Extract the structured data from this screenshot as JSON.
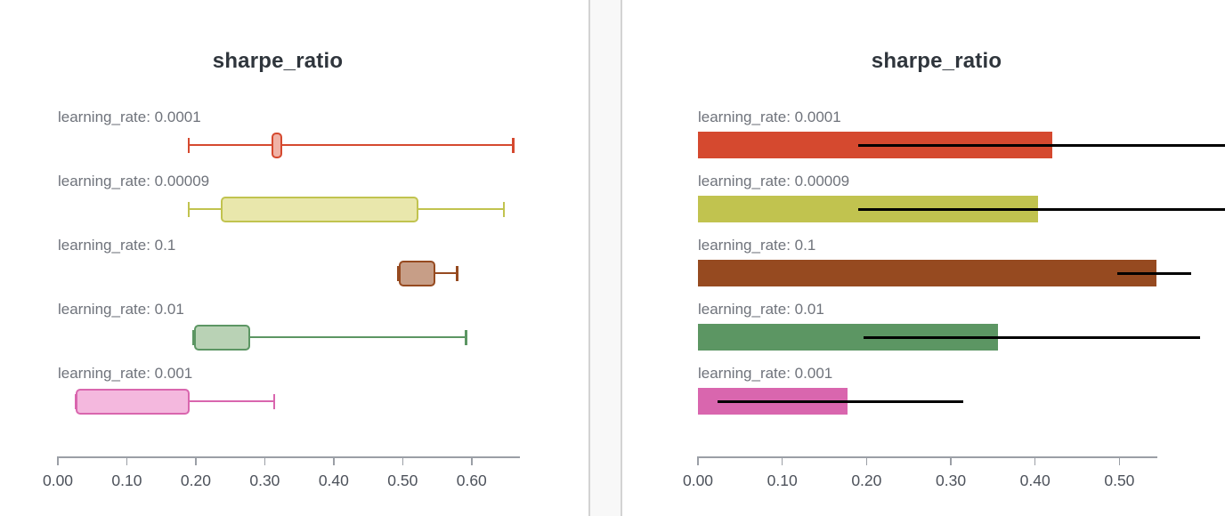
{
  "style": {
    "title_color": "#2f353c",
    "label_color": "#6f737b",
    "tick_label_color": "#4d525b",
    "axis_color": "#9b9fa6",
    "error_bar_color": "#000000",
    "divider_color": "#d3d3d3",
    "gutter_bg": "#f8f8f8",
    "panel_bg": "#ffffff"
  },
  "chart_data": [
    {
      "type": "box",
      "title": "sharpe_ratio",
      "orientation": "horizontal",
      "metric": "sharpe_ratio",
      "xlim": [
        0,
        0.67
      ],
      "grid": false,
      "x_ticks": [
        {
          "value": 0.0,
          "label": "0.00"
        },
        {
          "value": 0.1,
          "label": "0.10"
        },
        {
          "value": 0.2,
          "label": "0.20"
        },
        {
          "value": 0.3,
          "label": "0.30"
        },
        {
          "value": 0.4,
          "label": "0.40"
        },
        {
          "value": 0.5,
          "label": "0.50"
        },
        {
          "value": 0.6,
          "label": "0.60"
        }
      ],
      "rows": [
        {
          "label": "learning_rate: 0.0001",
          "stroke": "#d5492f",
          "fill": "#f0b2a6",
          "min": 0.19,
          "q1": 0.31,
          "q3": 0.325,
          "max": 0.66
        },
        {
          "label": "learning_rate: 0.00009",
          "stroke": "#c1c34f",
          "fill": "#e9e7ac",
          "min": 0.19,
          "q1": 0.236,
          "q3": 0.523,
          "max": 0.647
        },
        {
          "label": "learning_rate: 0.1",
          "stroke": "#964a20",
          "fill": "#c79e87",
          "min": 0.494,
          "q1": 0.494,
          "q3": 0.547,
          "max": 0.579
        },
        {
          "label": "learning_rate: 0.01",
          "stroke": "#5c9663",
          "fill": "#b9d2b5",
          "min": 0.197,
          "q1": 0.197,
          "q3": 0.279,
          "max": 0.592
        },
        {
          "label": "learning_rate: 0.001",
          "stroke": "#d966ae",
          "fill": "#f4b8de",
          "min": 0.026,
          "q1": 0.026,
          "q3": 0.191,
          "max": 0.314
        }
      ]
    },
    {
      "type": "bar",
      "title": "sharpe_ratio",
      "orientation": "horizontal",
      "metric": "sharpe_ratio",
      "xlim": [
        0,
        0.545
      ],
      "grid": false,
      "x_ticks": [
        {
          "value": 0.0,
          "label": "0.00"
        },
        {
          "value": 0.1,
          "label": "0.10"
        },
        {
          "value": 0.2,
          "label": "0.20"
        },
        {
          "value": 0.3,
          "label": "0.30"
        },
        {
          "value": 0.4,
          "label": "0.40"
        },
        {
          "value": 0.5,
          "label": "0.50"
        }
      ],
      "rows": [
        {
          "label": "learning_rate: 0.0001",
          "color": "#d5492f",
          "value": 0.42,
          "err_min": 0.19,
          "err_max": 0.66
        },
        {
          "label": "learning_rate: 0.00009",
          "color": "#c1c34f",
          "value": 0.403,
          "err_min": 0.19,
          "err_max": 0.647
        },
        {
          "label": "learning_rate: 0.1",
          "color": "#964a20",
          "value": 0.544,
          "err_min": 0.497,
          "err_max": 0.585
        },
        {
          "label": "learning_rate: 0.01",
          "color": "#5c9663",
          "value": 0.356,
          "err_min": 0.196,
          "err_max": 0.596
        },
        {
          "label": "learning_rate: 0.001",
          "color": "#d966ae",
          "value": 0.177,
          "err_min": 0.023,
          "err_max": 0.315
        }
      ]
    }
  ]
}
